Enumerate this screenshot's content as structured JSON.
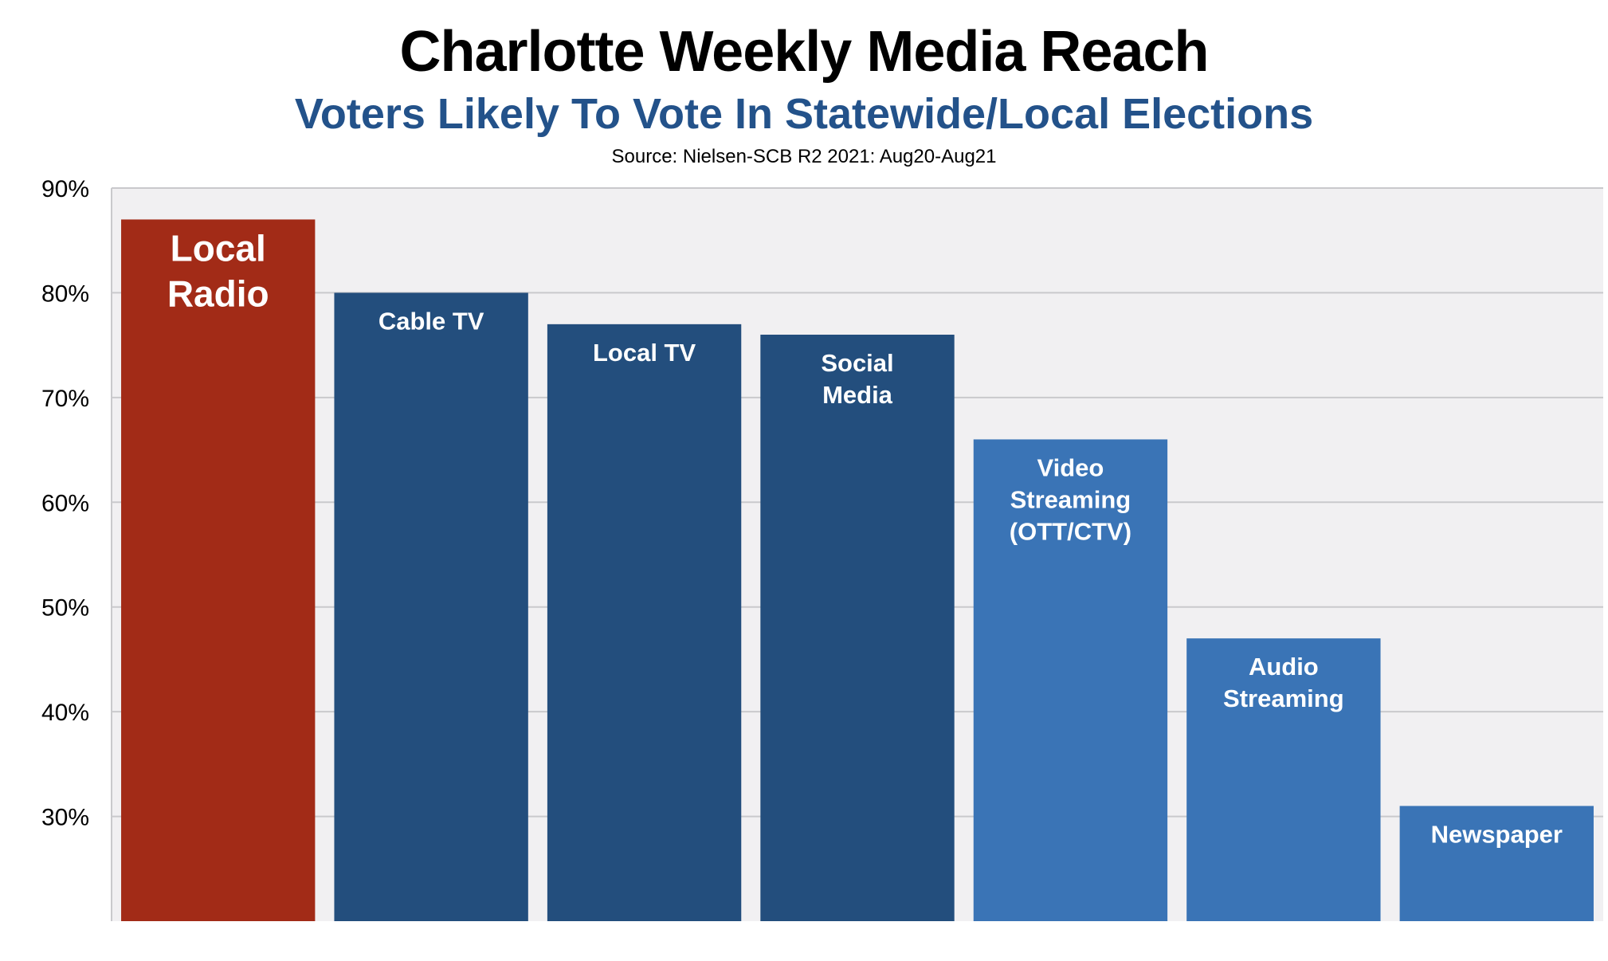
{
  "chart_data": {
    "type": "bar",
    "title": "Charlotte Weekly Media Reach",
    "subtitle": "Voters Likely To Vote In Statewide/Local Elections",
    "source": "Source: Nielsen-SCB R2 2021: Aug20-Aug21",
    "categories": [
      [
        "Local",
        "Radio"
      ],
      [
        "Cable TV"
      ],
      [
        "Local TV"
      ],
      [
        "Social",
        "Media"
      ],
      [
        "Video",
        "Streaming",
        "(OTT/CTV)"
      ],
      [
        "Audio",
        "Streaming"
      ],
      [
        "Newspaper"
      ]
    ],
    "values": [
      87,
      80,
      77,
      76,
      66,
      47,
      31
    ],
    "bar_colors": [
      "#a22b17",
      "#234e7d",
      "#234e7d",
      "#234e7d",
      "#3a74b6",
      "#3a74b6",
      "#3a74b6"
    ],
    "ylim": [
      20,
      90
    ],
    "y_ticks": [
      30,
      40,
      50,
      60,
      70,
      80,
      90
    ],
    "y_tick_labels": [
      "30%",
      "40%",
      "50%",
      "60%",
      "70%",
      "80%",
      "90%"
    ],
    "grid": true,
    "plot_background": "#f1f0f2",
    "grid_color": "#c9c9cc",
    "label_color": "#ffffff"
  }
}
